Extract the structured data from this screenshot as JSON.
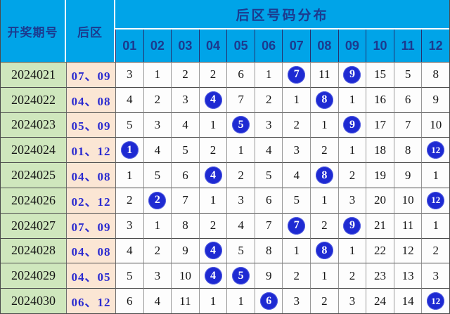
{
  "colors": {
    "header_bg": "#00a4e8",
    "header_text": "#1c3a8e",
    "period_col_bg": "#cfe7bd",
    "back_col_bg": "#fbe6d4",
    "back_col_text": "#2b2bd0",
    "ball_bg": "#1e2ad2",
    "ball_text": "#ffffff"
  },
  "chart_data": {
    "type": "table",
    "title": "后区号码分布",
    "headers": {
      "period": "开奖期号",
      "back_zone": "后区",
      "group": "后区号码分布",
      "number_columns": [
        "01",
        "02",
        "03",
        "04",
        "05",
        "06",
        "07",
        "08",
        "09",
        "10",
        "11",
        "12"
      ]
    },
    "rows": [
      {
        "period": "2024021",
        "back_zone": "07、09",
        "drawn": [
          7,
          9
        ],
        "cells": [
          3,
          1,
          2,
          2,
          6,
          1,
          7,
          11,
          9,
          15,
          5,
          8
        ]
      },
      {
        "period": "2024022",
        "back_zone": "04、08",
        "drawn": [
          4,
          8
        ],
        "cells": [
          4,
          2,
          3,
          4,
          7,
          2,
          1,
          8,
          1,
          16,
          6,
          9
        ]
      },
      {
        "period": "2024023",
        "back_zone": "05、09",
        "drawn": [
          5,
          9
        ],
        "cells": [
          5,
          3,
          4,
          1,
          5,
          3,
          2,
          1,
          9,
          17,
          7,
          10
        ]
      },
      {
        "period": "2024024",
        "back_zone": "01、12",
        "drawn": [
          1,
          12
        ],
        "cells": [
          1,
          4,
          5,
          2,
          1,
          4,
          3,
          2,
          1,
          18,
          8,
          12
        ]
      },
      {
        "period": "2024025",
        "back_zone": "04、08",
        "drawn": [
          4,
          8
        ],
        "cells": [
          1,
          5,
          6,
          4,
          2,
          5,
          4,
          8,
          2,
          19,
          9,
          1
        ]
      },
      {
        "period": "2024026",
        "back_zone": "02、12",
        "drawn": [
          2,
          12
        ],
        "cells": [
          2,
          2,
          7,
          1,
          3,
          6,
          5,
          1,
          3,
          20,
          10,
          12
        ]
      },
      {
        "period": "2024027",
        "back_zone": "07、09",
        "drawn": [
          7,
          9
        ],
        "cells": [
          3,
          1,
          8,
          2,
          4,
          7,
          7,
          2,
          9,
          21,
          11,
          1
        ]
      },
      {
        "period": "2024028",
        "back_zone": "04、08",
        "drawn": [
          4,
          8
        ],
        "cells": [
          4,
          2,
          9,
          4,
          5,
          8,
          1,
          8,
          1,
          22,
          12,
          2
        ]
      },
      {
        "period": "2024029",
        "back_zone": "04、05",
        "drawn": [
          4,
          5
        ],
        "cells": [
          5,
          3,
          10,
          4,
          5,
          9,
          2,
          1,
          2,
          23,
          13,
          3
        ]
      },
      {
        "period": "2024030",
        "back_zone": "06、12",
        "drawn": [
          6,
          12
        ],
        "cells": [
          6,
          4,
          11,
          1,
          1,
          6,
          3,
          2,
          3,
          24,
          14,
          12
        ]
      }
    ]
  }
}
